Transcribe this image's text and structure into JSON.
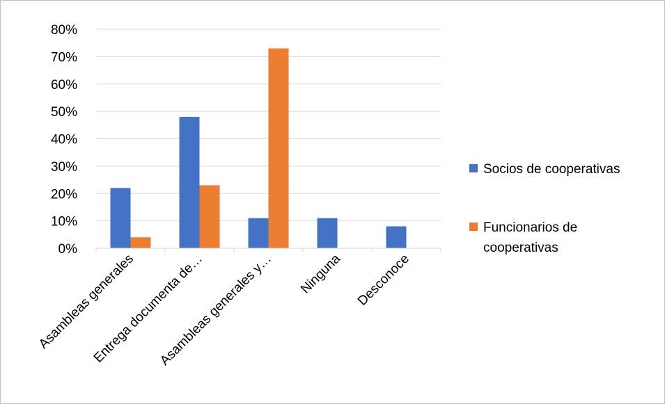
{
  "chart_data": {
    "type": "bar",
    "categories": [
      "Asambleas generales",
      "Entrega documenta de…",
      "Asambleas generales y…",
      "Ninguna",
      "Desconoce"
    ],
    "series": [
      {
        "name": "Socios de cooperativas",
        "values": [
          22,
          48,
          11,
          11,
          8
        ],
        "color": "#4472c4"
      },
      {
        "name": "Funcionarios de cooperativas",
        "legend_lines": [
          "Funcionarios de",
          "cooperativas"
        ],
        "values": [
          4,
          23,
          73,
          null,
          null
        ],
        "color": "#ed7d31"
      }
    ],
    "ylim": [
      0,
      80
    ],
    "yticks": [
      "0%",
      "10%",
      "20%",
      "30%",
      "40%",
      "50%",
      "60%",
      "70%",
      "80%"
    ],
    "ytick_values": [
      0,
      10,
      20,
      30,
      40,
      50,
      60,
      70,
      80
    ],
    "grid": true,
    "legend_position": "right",
    "title": "",
    "xlabel": "",
    "ylabel": ""
  }
}
